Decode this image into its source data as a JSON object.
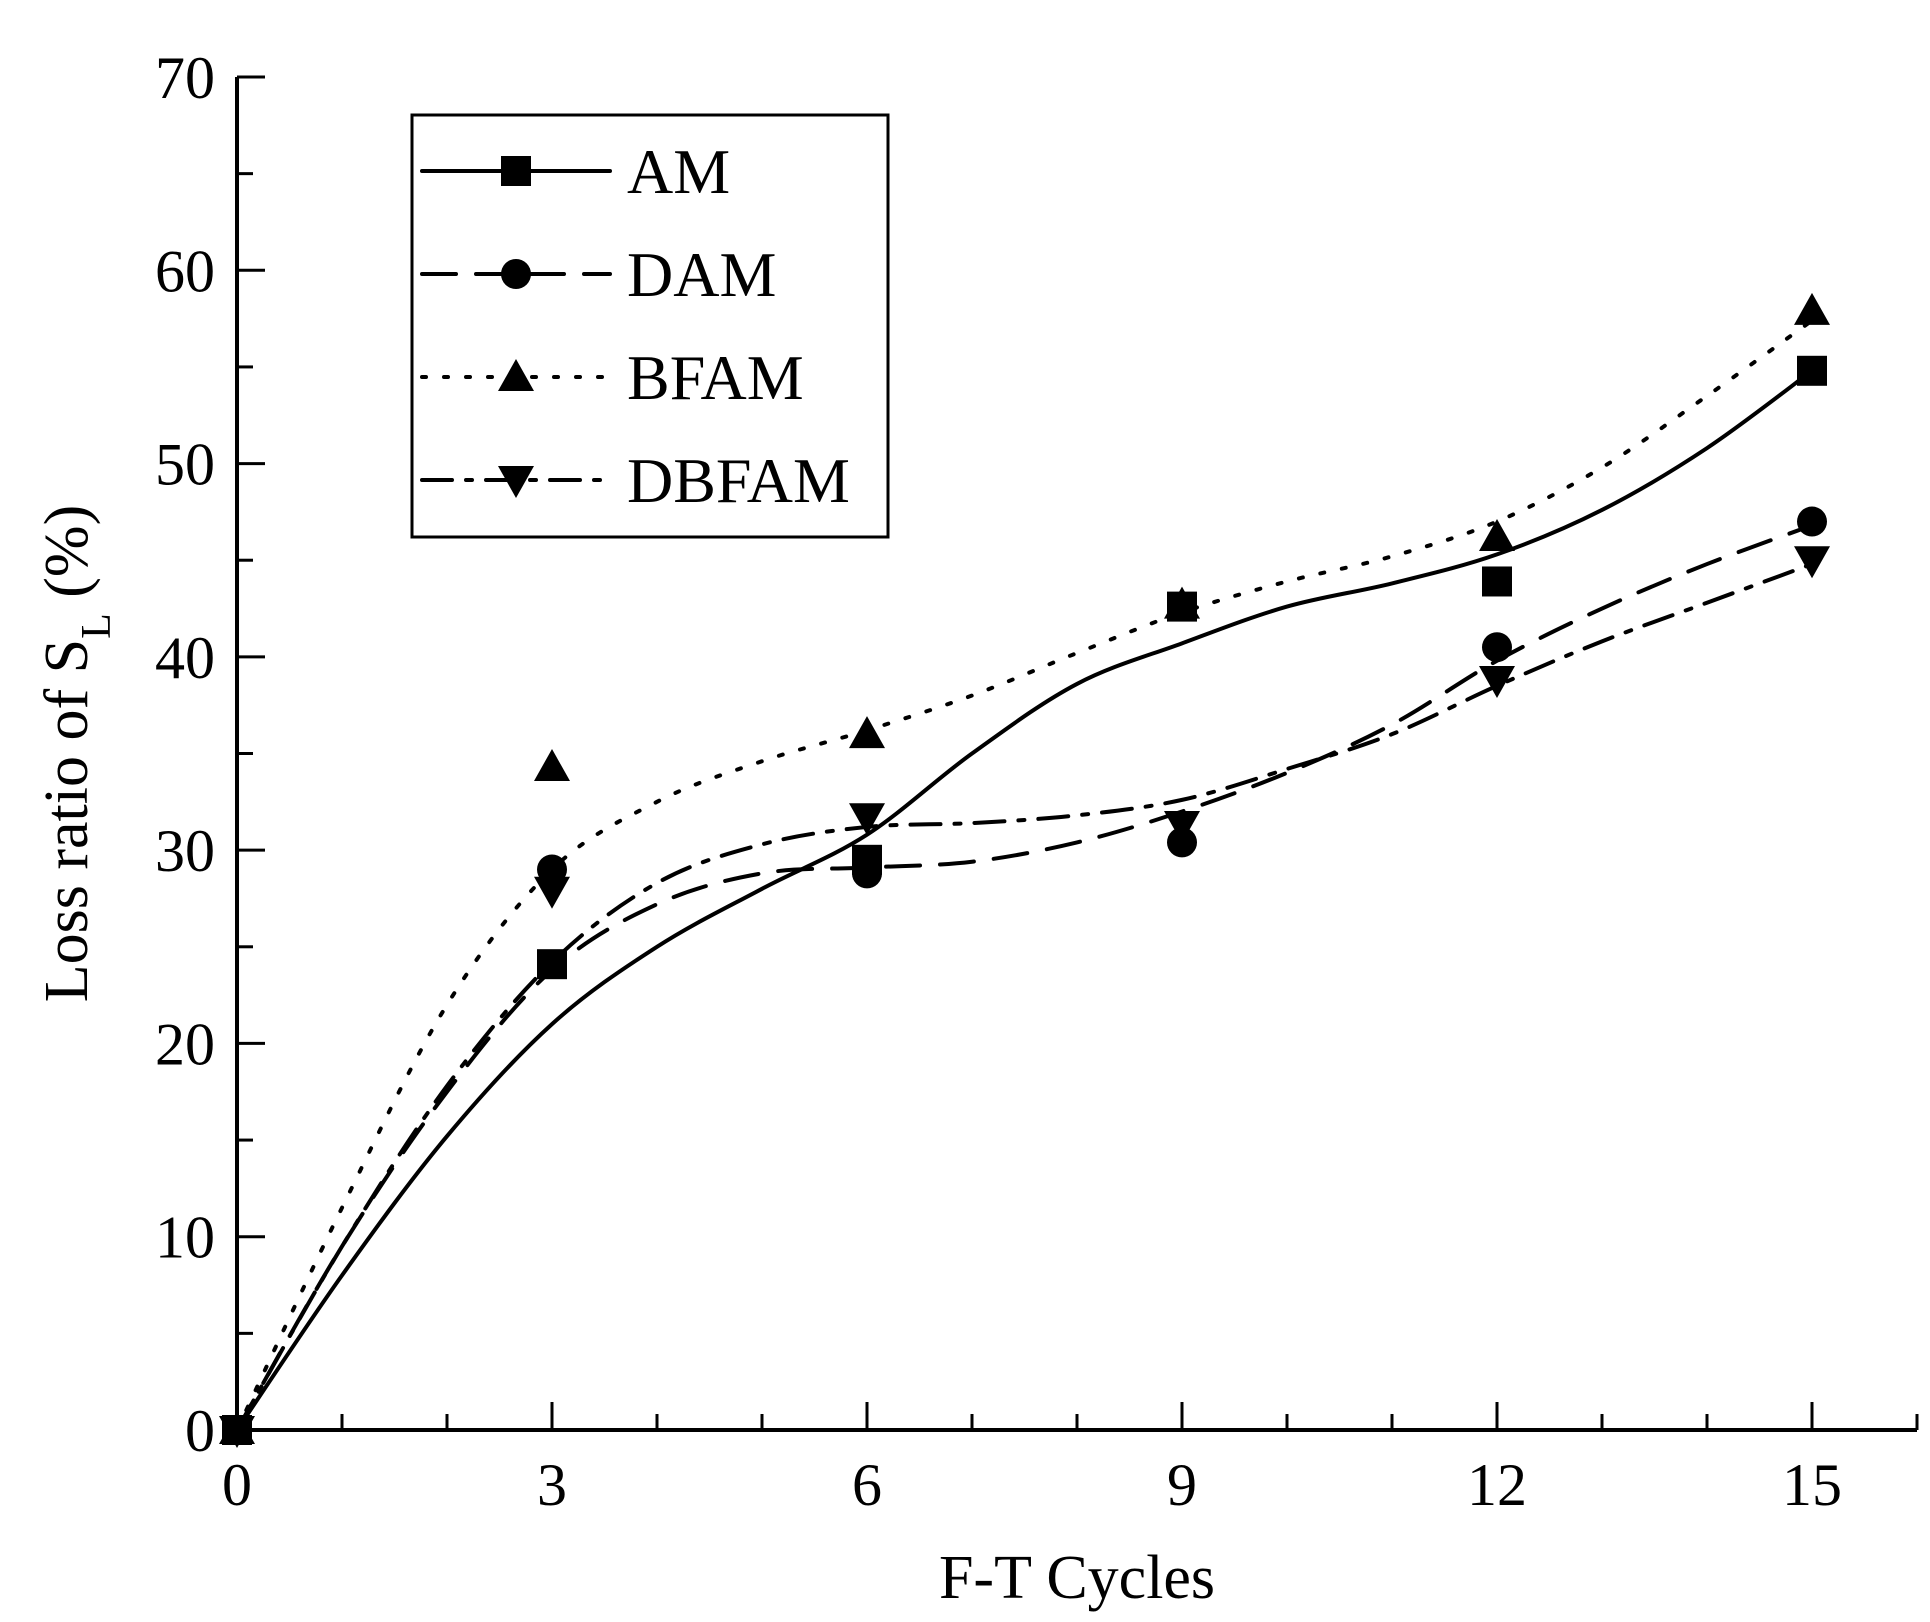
{
  "chart_data": {
    "type": "line",
    "title": "",
    "xlabel": "F-T Cycles",
    "ylabel": {
      "main": "Loss ratio of S",
      "subscript": "L",
      "suffix": " (%)"
    },
    "xlim": [
      0,
      16
    ],
    "ylim": [
      0,
      70
    ],
    "xticks": [
      0,
      3,
      6,
      9,
      12,
      15
    ],
    "yticks": [
      0,
      10,
      20,
      30,
      40,
      50,
      60,
      70
    ],
    "x_minor_step": 1,
    "y_minor_step": 5,
    "grid": false,
    "legend_position": "top-left",
    "x": [
      0,
      3,
      6,
      9,
      12,
      15
    ],
    "series": [
      {
        "name": "AM",
        "marker": "square",
        "line_style": "solid",
        "values": [
          0,
          24.1,
          29.5,
          42.6,
          43.9,
          54.8
        ],
        "curve": [
          [
            0,
            0
          ],
          [
            1,
            8
          ],
          [
            2,
            15.2
          ],
          [
            3,
            21
          ],
          [
            4,
            25
          ],
          [
            5,
            28
          ],
          [
            6,
            30.8
          ],
          [
            7,
            35
          ],
          [
            8,
            38.6
          ],
          [
            9,
            40.7
          ],
          [
            10,
            42.6
          ],
          [
            11,
            43.8
          ],
          [
            12,
            45.3
          ],
          [
            13,
            47.6
          ],
          [
            14,
            50.8
          ],
          [
            15,
            54.8
          ]
        ]
      },
      {
        "name": "DAM",
        "marker": "circle",
        "line_style": "dashed",
        "values": [
          0,
          29.0,
          28.8,
          30.4,
          40.5,
          47.0
        ],
        "curve": [
          [
            0,
            0
          ],
          [
            1,
            9.5
          ],
          [
            2,
            17.5
          ],
          [
            3,
            23.8
          ],
          [
            4,
            27.2
          ],
          [
            5,
            28.8
          ],
          [
            6,
            29.1
          ],
          [
            7,
            29.4
          ],
          [
            8,
            30.4
          ],
          [
            9,
            32
          ],
          [
            10,
            34
          ],
          [
            11,
            36.5
          ],
          [
            12,
            39.8
          ],
          [
            13,
            42.5
          ],
          [
            14,
            44.8
          ],
          [
            15,
            46.8
          ]
        ]
      },
      {
        "name": "BFAM",
        "marker": "triangle-up",
        "line_style": "dotted",
        "values": [
          0,
          34.3,
          36.0,
          42.7,
          46.2,
          57.9
        ],
        "curve": [
          [
            0,
            0
          ],
          [
            1,
            11.5
          ],
          [
            2,
            22
          ],
          [
            3,
            29
          ],
          [
            4,
            32.5
          ],
          [
            5,
            34.6
          ],
          [
            6,
            36.2
          ],
          [
            7,
            38
          ],
          [
            8,
            40.2
          ],
          [
            9,
            42.3
          ],
          [
            10,
            43.9
          ],
          [
            11,
            45.2
          ],
          [
            12,
            47
          ],
          [
            13,
            49.8
          ],
          [
            14,
            53.5
          ],
          [
            15,
            57.4
          ]
        ]
      },
      {
        "name": "DBFAM",
        "marker": "triangle-down",
        "line_style": "dashdot",
        "values": [
          0,
          27.9,
          31.7,
          31.3,
          38.8,
          45.0
        ],
        "curve": [
          [
            0,
            0
          ],
          [
            1,
            9.5
          ],
          [
            2,
            17.8
          ],
          [
            3,
            24.2
          ],
          [
            4,
            28.3
          ],
          [
            5,
            30.3
          ],
          [
            6,
            31.2
          ],
          [
            7,
            31.4
          ],
          [
            8,
            31.8
          ],
          [
            9,
            32.6
          ],
          [
            10,
            34.2
          ],
          [
            11,
            36
          ],
          [
            12,
            38.5
          ],
          [
            13,
            40.8
          ],
          [
            14,
            42.8
          ],
          [
            15,
            44.8
          ]
        ]
      }
    ]
  }
}
